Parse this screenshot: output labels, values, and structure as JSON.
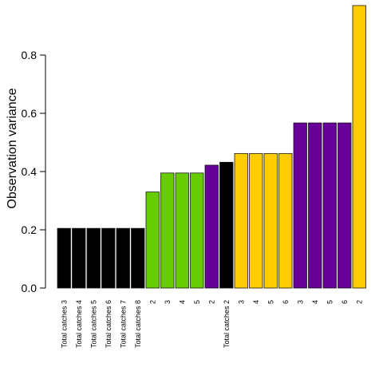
{
  "chart_data": {
    "type": "bar",
    "title": "",
    "xlabel": "",
    "ylabel": "Observation variance",
    "ylim": [
      0,
      0.97
    ],
    "yticks": [
      0.0,
      0.2,
      0.4,
      0.6,
      0.8
    ],
    "ytick_labels": [
      "0.0",
      "0.2",
      "0.4",
      "0.6",
      "0.8"
    ],
    "grid": false,
    "legend": "none",
    "categories": [
      "Total catches 3",
      "Total catches 4",
      "Total catches 5",
      "Total catches 6",
      "Total catches 7",
      "Total catches 8",
      "2",
      "3",
      "4",
      "5",
      "2",
      "Total catches 2",
      "3",
      "4",
      "5",
      "6",
      "3",
      "4",
      "5",
      "6",
      "2"
    ],
    "values": [
      0.205,
      0.205,
      0.205,
      0.205,
      0.205,
      0.205,
      0.33,
      0.395,
      0.395,
      0.395,
      0.422,
      0.432,
      0.462,
      0.462,
      0.462,
      0.462,
      0.567,
      0.567,
      0.567,
      0.567,
      0.97
    ],
    "bar_colors": [
      "#000000",
      "#000000",
      "#000000",
      "#000000",
      "#000000",
      "#000000",
      "#66CC00",
      "#66CC00",
      "#66CC00",
      "#66CC00",
      "#660099",
      "#000000",
      "#FFCC00",
      "#FFCC00",
      "#FFCC00",
      "#FFCC00",
      "#660099",
      "#660099",
      "#660099",
      "#660099",
      "#FFCC00"
    ]
  }
}
